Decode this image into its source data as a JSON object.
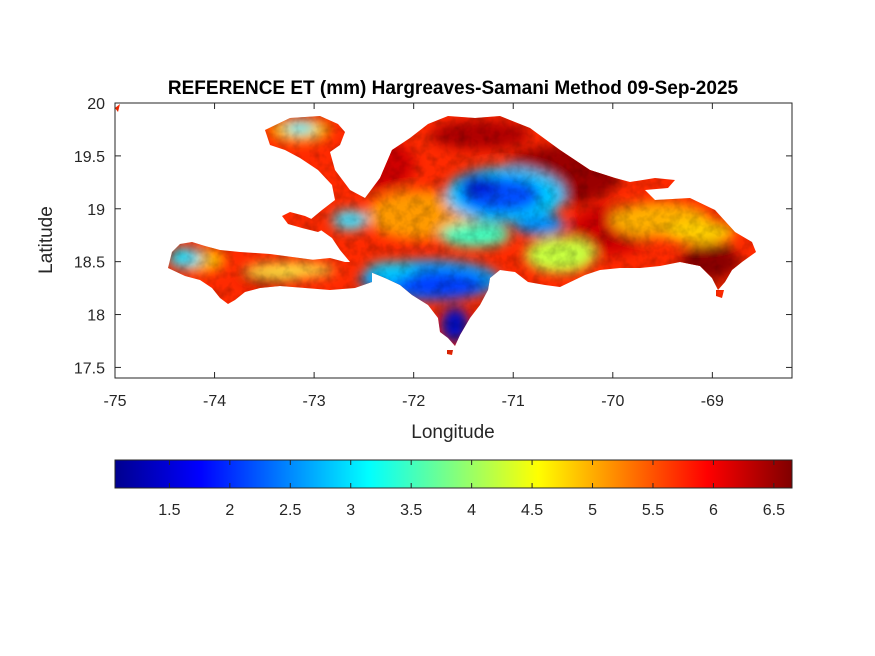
{
  "title": "REFERENCE ET (mm) Hargreaves-Samani Method  09-Sep-2025",
  "map": {
    "xlabel": "Longitude",
    "ylabel": "Latitude",
    "xlim": [
      -75,
      -68.2
    ],
    "ylim": [
      17.4,
      20
    ],
    "xticks": [
      -75,
      -74,
      -73,
      -72,
      -71,
      -70,
      -69
    ],
    "xtick_labels": [
      "-75",
      "-74",
      "-73",
      "-72",
      "-71",
      "-70",
      "-69"
    ],
    "yticks": [
      17.5,
      18,
      18.5,
      19,
      19.5,
      20
    ],
    "ytick_labels": [
      "17.5",
      "18",
      "18.5",
      "19",
      "19.5",
      "20"
    ],
    "colormap": "jet",
    "region": "Hispaniola (Haiti and Dominican Republic)"
  },
  "colorbar": {
    "placement": "bottom",
    "range": [
      1.05,
      6.65
    ],
    "ticks": [
      1.5,
      2,
      2.5,
      3,
      3.5,
      4,
      4.5,
      5,
      5.5,
      6,
      6.5
    ],
    "tick_labels": [
      "1.5",
      "2",
      "2.5",
      "3",
      "3.5",
      "4",
      "4.5",
      "5",
      "5.5",
      "6",
      "6.5"
    ],
    "colors": [
      "#00008F",
      "#0000FF",
      "#0080FF",
      "#00FFFF",
      "#80FF80",
      "#FFFF00",
      "#FF8000",
      "#FF0000",
      "#800000"
    ]
  }
}
